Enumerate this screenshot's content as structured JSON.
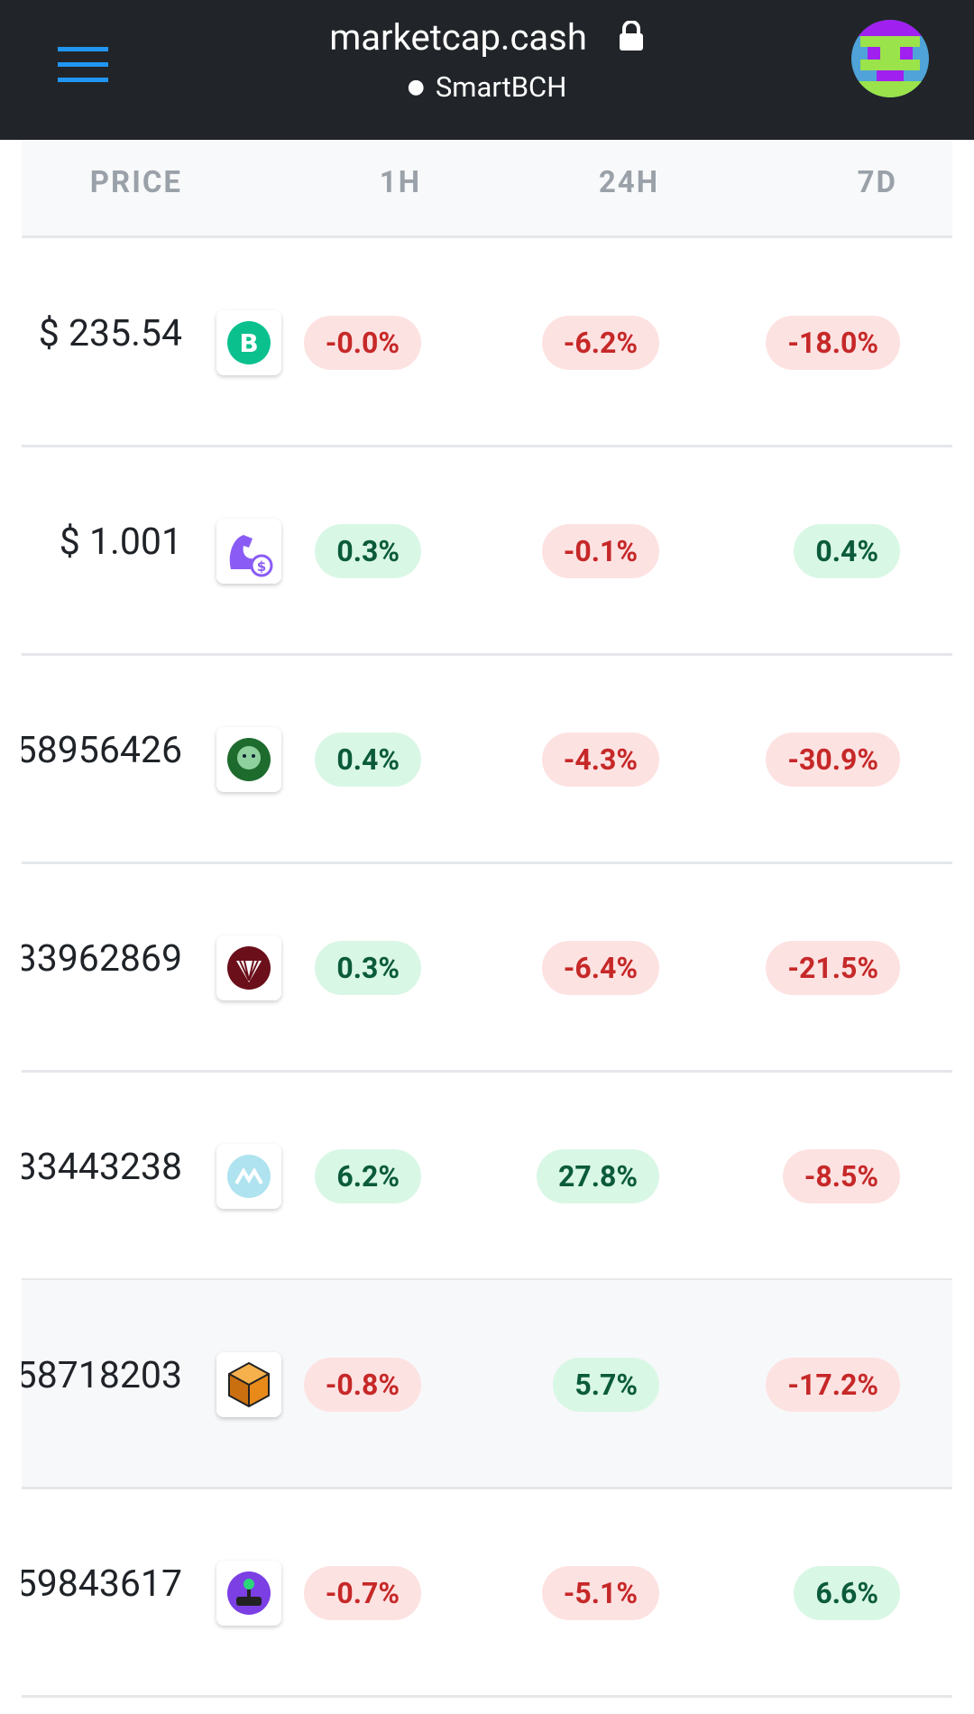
{
  "header": {
    "site": "marketcap.cash",
    "network": "SmartBCH"
  },
  "table": {
    "columns": [
      "PRICE",
      "1H",
      "24H",
      "7D"
    ],
    "rows": [
      [
        "$ 235.54",
        "-0.0%",
        "-6.2%",
        "-18.0%"
      ],
      [
        "$ 1.001",
        "0.3%",
        "-0.1%",
        "0.4%"
      ],
      [
        "58956426",
        "0.4%",
        "-4.3%",
        "-30.9%"
      ],
      [
        "33962869",
        "0.3%",
        "-6.4%",
        "-21.5%"
      ],
      [
        "33443238",
        "6.2%",
        "27.8%",
        "-8.5%"
      ],
      [
        "58718203",
        "-0.8%",
        "5.7%",
        "-17.2%"
      ],
      [
        "59843617",
        "-0.7%",
        "-5.1%",
        "6.6%"
      ]
    ]
  }
}
